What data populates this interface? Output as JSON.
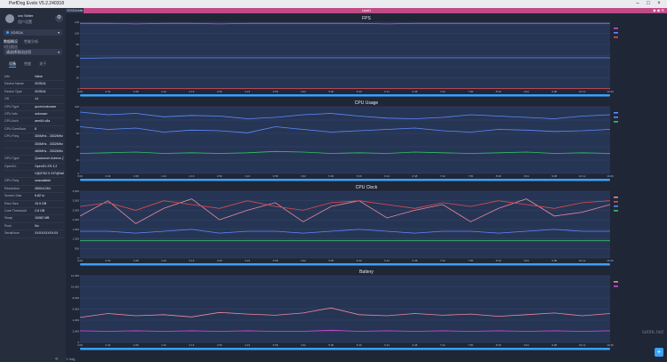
{
  "window": {
    "title": "PerfDog Evolo V5.2.240318"
  },
  "sidebar": {
    "user_name": "xxx Seller",
    "user_sub": "用户设置",
    "device_label": "XDSDA",
    "tabs": [
      "数据概况",
      "性能分析",
      "对比报告"
    ],
    "app_label": "请选择测试应用",
    "subtabs": [
      "设备",
      "性能",
      "关于"
    ],
    "kv": [
      {
        "k": "Info",
        "v": "Value"
      },
      {
        "k": "Device Name",
        "v": "XDSDA"
      },
      {
        "k": "Device Type",
        "v": "XDSDA"
      },
      {
        "k": "OS",
        "v": "14"
      },
      {
        "k": "CPU Type",
        "v": "qcom/unknown"
      },
      {
        "k": "CPU Info",
        "v": "unknown"
      },
      {
        "k": "CPU Arch",
        "v": "arm64-v8a"
      },
      {
        "k": "CPU CoreNum",
        "v": "8"
      },
      {
        "k": "CPU Freq",
        "v": "300MHz - 3302MHz"
      },
      {
        "k": "",
        "v": "300MHz - 3302MHz"
      },
      {
        "k": "",
        "v": "480MHz - 3302MHz"
      },
      {
        "k": "GPU Type",
        "v": "Qualcomm Adreno (TM)"
      },
      {
        "k": "OpenGL",
        "v": "OpenGL ES 3.2"
      },
      {
        "k": "",
        "v": "V@0762.0 GIT@9a0b"
      },
      {
        "k": "GPU Freq",
        "v": "unavailable"
      },
      {
        "k": "Resolution",
        "v": "2800x1264"
      },
      {
        "k": "Screen Size",
        "v": "6.82 in"
      },
      {
        "k": "Ram Size",
        "v": "15.9 GB"
      },
      {
        "k": "Core Threshold",
        "v": "2.8 GB"
      },
      {
        "k": "Swap",
        "v": "16382 MB"
      },
      {
        "k": "Root",
        "v": "No"
      },
      {
        "k": "SerialNum",
        "v": "XXXXXXXXXXX"
      }
    ]
  },
  "topstrip": {
    "left": "XDSDA/Idle",
    "center": "Label1"
  },
  "x_ticks": [
    "0:00",
    "0:34",
    "1:08",
    "1:42",
    "2:16",
    "2:50",
    "3:24",
    "3:58",
    "4:32",
    "5:06",
    "5:40",
    "6:14",
    "6:48",
    "7:22",
    "7:56",
    "8:30",
    "9:04",
    "9:38",
    "10:12",
    "10:46"
  ],
  "bottom": {
    "left": "Y-Intg",
    "collapse_icon": "double-chevron-left-icon",
    "add_icon": "plus-icon"
  },
  "watermark": "setife.net",
  "colors": {
    "accent": "#3aa1ff",
    "strip": "#c14b86",
    "series_blue": "#5b8cff",
    "series_green": "#34c26a",
    "series_red": "#e24b4b",
    "series_pink": "#e88a9e",
    "series_magenta": "#d24bd2"
  },
  "chart_data": [
    {
      "type": "line",
      "title": "FPS",
      "ylim": [
        0,
        120
      ],
      "yticks": [
        "120",
        "100",
        "80",
        "60",
        "40",
        "20",
        "0"
      ],
      "series": [
        {
          "color": "#d24bd2",
          "values": [
            118,
            118,
            117,
            118,
            118,
            117,
            118,
            118,
            118,
            118,
            118,
            117,
            118,
            118,
            118,
            118,
            118,
            118,
            118,
            118
          ]
        },
        {
          "color": "#5b8cff",
          "values": [
            55,
            56,
            56,
            56,
            56,
            56,
            56,
            56,
            56,
            56,
            56,
            56,
            56,
            56,
            56,
            56,
            56,
            56,
            56,
            56
          ]
        },
        {
          "color": "#e24b4b",
          "values": [
            1,
            1,
            1,
            1,
            1,
            1,
            1,
            1,
            1,
            1,
            1,
            1,
            1,
            1,
            1,
            1,
            1,
            1,
            1,
            1
          ]
        }
      ]
    },
    {
      "type": "line",
      "title": "CPU Usage",
      "ylim": [
        0,
        100
      ],
      "yticks": [
        "100",
        "80",
        "60",
        "40",
        "20",
        "0"
      ],
      "series": [
        {
          "color": "#5b8cff",
          "values": [
            92,
            88,
            90,
            85,
            87,
            86,
            82,
            84,
            88,
            90,
            86,
            83,
            82,
            84,
            88,
            86,
            84,
            82,
            86,
            88
          ]
        },
        {
          "color": "#5b8cff",
          "values": [
            70,
            66,
            68,
            62,
            65,
            64,
            61,
            70,
            66,
            62,
            64,
            66,
            68,
            64,
            62,
            66,
            65,
            63,
            64,
            66
          ]
        },
        {
          "color": "#34c26a",
          "values": [
            30,
            31,
            32,
            30,
            31,
            30,
            31,
            33,
            32,
            30,
            31,
            30,
            32,
            31,
            30,
            31,
            32,
            30,
            31,
            30
          ]
        }
      ]
    },
    {
      "type": "line",
      "title": "CPU Clock",
      "ylim": [
        0,
        3500
      ],
      "yticks": [
        "3,500",
        "3,000",
        "2,500",
        "2,000",
        "1,500",
        "1,000",
        "500",
        "0"
      ],
      "series": [
        {
          "color": "#e88a9e",
          "values": [
            2200,
            3000,
            1800,
            2600,
            3100,
            2000,
            2500,
            2900,
            1900,
            2700,
            3000,
            2100,
            2500,
            2800,
            1900,
            2600,
            3100,
            2200,
            2400,
            2800
          ]
        },
        {
          "color": "#e24b4b",
          "values": [
            2700,
            2900,
            2500,
            3000,
            2800,
            2600,
            3000,
            2700,
            2500,
            2900,
            3000,
            2800,
            2600,
            2900,
            2700,
            3000,
            2800,
            2600,
            2900,
            3000
          ]
        },
        {
          "color": "#5b8cff",
          "values": [
            1400,
            1400,
            1300,
            1400,
            1500,
            1300,
            1400,
            1400,
            1300,
            1400,
            1500,
            1400,
            1300,
            1400,
            1400,
            1300,
            1400,
            1500,
            1400,
            1400
          ]
        },
        {
          "color": "#34c26a",
          "values": [
            900,
            900,
            900,
            900,
            900,
            900,
            900,
            900,
            900,
            900,
            900,
            900,
            900,
            900,
            900,
            900,
            900,
            900,
            900,
            900
          ]
        }
      ]
    },
    {
      "type": "line",
      "title": "Battery",
      "ylim": [
        0,
        12000
      ],
      "yticks": [
        "12,000",
        "10,000",
        "8,000",
        "6,000",
        "4,000",
        "2,000",
        "0"
      ],
      "series": [
        {
          "color": "#e88a9e",
          "values": [
            4500,
            5200,
            4800,
            5000,
            4600,
            5400,
            5100,
            4900,
            5300,
            6200,
            5000,
            4800,
            5200,
            4900,
            5100,
            4700,
            5000,
            5300,
            4800,
            5200
          ]
        },
        {
          "color": "#d24bd2",
          "values": [
            2100,
            2000,
            2100,
            2000,
            2100,
            2000,
            2100,
            2000,
            2000,
            2200,
            2000,
            2100,
            2000,
            2100,
            2000,
            2100,
            2000,
            2100,
            2000,
            2100
          ]
        }
      ]
    }
  ]
}
